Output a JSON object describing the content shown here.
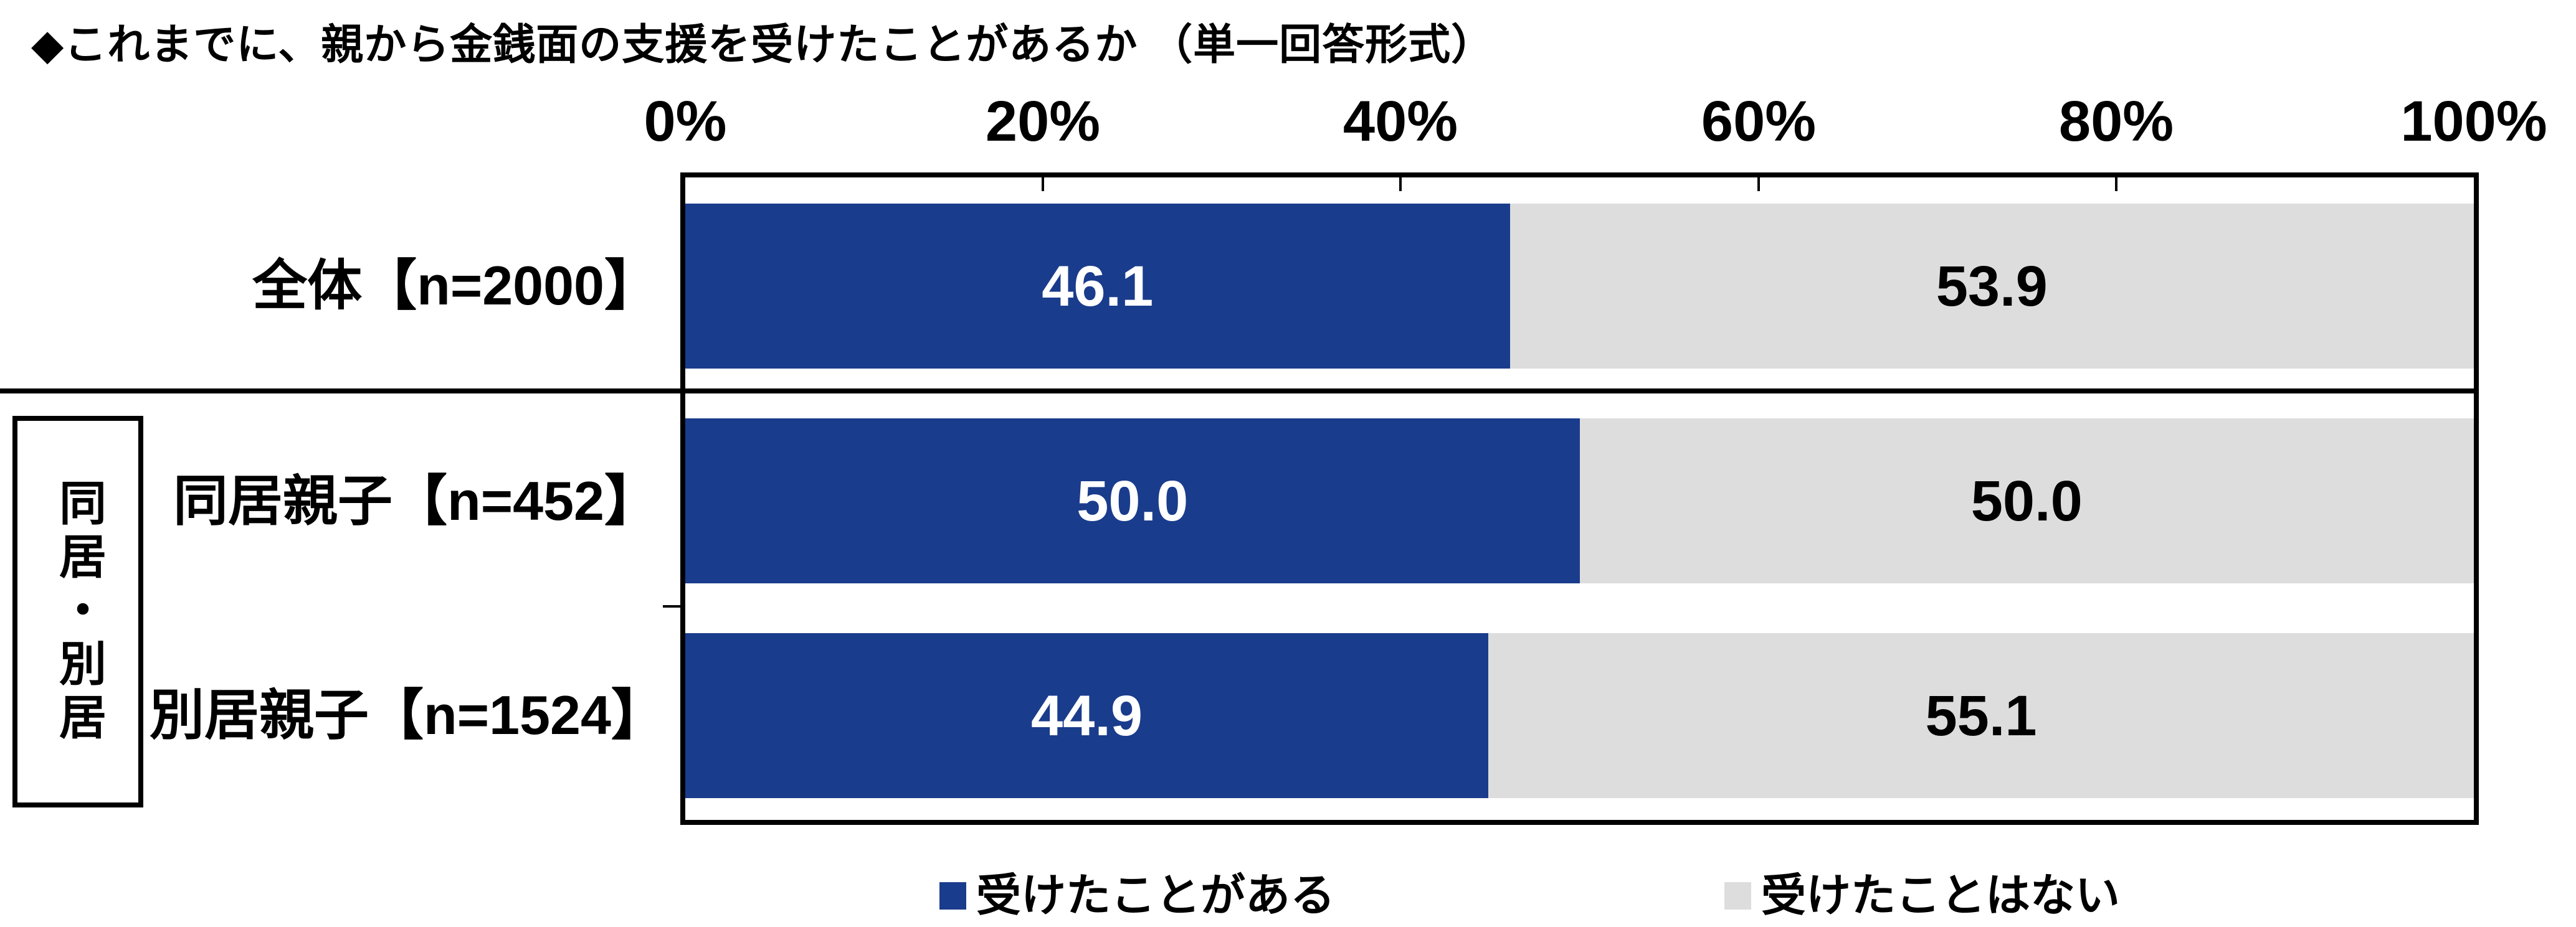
{
  "title": "◆これまでに、親から金銭面の支援を受けたことがあるか （単一回答形式）",
  "colors": {
    "yes_blue": "#1A3C8C",
    "no_gray": "#DDDDDD",
    "axis_line": "#000000"
  },
  "group": {
    "label": "同居・別居"
  },
  "legend": {
    "position": "bottom",
    "items": [
      {
        "label": "受けたことがある",
        "color": "#1A3C8C"
      },
      {
        "label": "受けたことはない",
        "color": "#DDDDDD"
      }
    ]
  },
  "chart_data": {
    "type": "bar",
    "orientation": "horizontal",
    "stacked": true,
    "unit": "percent",
    "title": "◆これまでに、親から金銭面の支援を受けたことがあるか （単一回答形式）",
    "xlim": [
      0,
      100
    ],
    "x_ticks": [
      "0%",
      "20%",
      "40%",
      "60%",
      "80%",
      "100%"
    ],
    "grid": false,
    "legend_position": "bottom",
    "categories": [
      "全体【n=2000】",
      "同居親子【n=452】",
      "別居親子【n=1524】"
    ],
    "category_group": {
      "label": "同居・別居",
      "applies_to": [
        "同居親子【n=452】",
        "別居親子【n=1524】"
      ]
    },
    "series": [
      {
        "name": "受けたことがある",
        "color": "#1A3C8C",
        "values": [
          46.1,
          50.0,
          44.9
        ],
        "value_labels": [
          "46.1",
          "50.0",
          "44.9"
        ]
      },
      {
        "name": "受けたことはない",
        "color": "#DDDDDD",
        "values": [
          53.9,
          50.0,
          55.1
        ],
        "value_labels": [
          "53.9",
          "50.0",
          "55.1"
        ]
      }
    ]
  }
}
